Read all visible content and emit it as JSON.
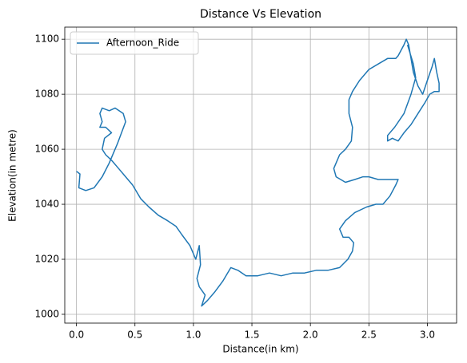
{
  "chart_data": {
    "type": "line",
    "title": "Distance Vs Elevation",
    "x_label": "Distance(in km)",
    "y_label": "Elevation(in metre)",
    "x": [
      0.0,
      0.03,
      0.02,
      0.08,
      0.15,
      0.22,
      0.28,
      0.35,
      0.42,
      0.4,
      0.33,
      0.28,
      0.22,
      0.2,
      0.22,
      0.2,
      0.25,
      0.3,
      0.24,
      0.22,
      0.25,
      0.3,
      0.36,
      0.42,
      0.48,
      0.55,
      0.62,
      0.7,
      0.78,
      0.85,
      0.9,
      0.97,
      1.02,
      1.05,
      1.06,
      1.03,
      1.05,
      1.1,
      1.07,
      1.12,
      1.18,
      1.25,
      1.32,
      1.38,
      1.45,
      1.55,
      1.65,
      1.75,
      1.85,
      1.95,
      2.05,
      2.15,
      2.25,
      2.32,
      2.36,
      2.37,
      2.33,
      2.28,
      2.25,
      2.3,
      2.38,
      2.48,
      2.56,
      2.62,
      2.68,
      2.73,
      2.75,
      2.68,
      2.58,
      2.5,
      2.45,
      2.38,
      2.3,
      2.22,
      2.2,
      2.22,
      2.25,
      2.3,
      2.35,
      2.36,
      2.33,
      2.33,
      2.36,
      2.42,
      2.5,
      2.58,
      2.66,
      2.73,
      2.75,
      2.8,
      2.82,
      2.84,
      2.86,
      2.88,
      2.92,
      2.96,
      3.0,
      3.04,
      3.06,
      3.08,
      3.1,
      3.1,
      3.06,
      3.02,
      2.98,
      2.92,
      2.86,
      2.8,
      2.75,
      2.7,
      2.66,
      2.66,
      2.72,
      2.8,
      2.86,
      2.9,
      2.88,
      2.83
    ],
    "series": [
      {
        "name": "Afternoon_Ride",
        "color": "#1f77b4",
        "values": [
          1052,
          1051,
          1046,
          1045,
          1046,
          1050,
          1055,
          1062,
          1070,
          1073,
          1075,
          1074,
          1075,
          1073,
          1070,
          1068,
          1068,
          1066,
          1064,
          1060,
          1058,
          1056,
          1053,
          1050,
          1047,
          1042,
          1039,
          1036,
          1034,
          1032,
          1029,
          1025,
          1020,
          1025,
          1018,
          1013,
          1010,
          1007,
          1003,
          1005,
          1008,
          1012,
          1017,
          1016,
          1014,
          1014,
          1015,
          1014,
          1015,
          1015,
          1016,
          1016,
          1017,
          1020,
          1023,
          1026,
          1028,
          1028,
          1031,
          1034,
          1037,
          1039,
          1040,
          1040,
          1043,
          1047,
          1049,
          1049,
          1049,
          1050,
          1050,
          1049,
          1048,
          1050,
          1053,
          1055,
          1058,
          1060,
          1063,
          1068,
          1073,
          1078,
          1081,
          1085,
          1089,
          1091,
          1093,
          1093,
          1094,
          1098,
          1100,
          1098,
          1093,
          1088,
          1083,
          1080,
          1085,
          1090,
          1093,
          1088,
          1084,
          1081,
          1081,
          1080,
          1077,
          1073,
          1069,
          1066,
          1063,
          1064,
          1063,
          1065,
          1068,
          1073,
          1080,
          1086,
          1091,
          1098
        ]
      }
    ],
    "xlim": [
      -0.1,
      3.25
    ],
    "xticks": [
      {
        "value": 0,
        "label": "0.0"
      },
      0.5,
      {
        "value": 1,
        "label": "1.0"
      },
      1.5,
      {
        "value": 2,
        "label": "2.0"
      },
      2.5,
      {
        "value": 3,
        "label": "3.0"
      }
    ],
    "ylim": [
      996.8,
      1104.4
    ],
    "yticks": [
      1000,
      1020,
      1040,
      1060,
      1080,
      1100
    ],
    "grid": true,
    "legend": "upper left"
  }
}
